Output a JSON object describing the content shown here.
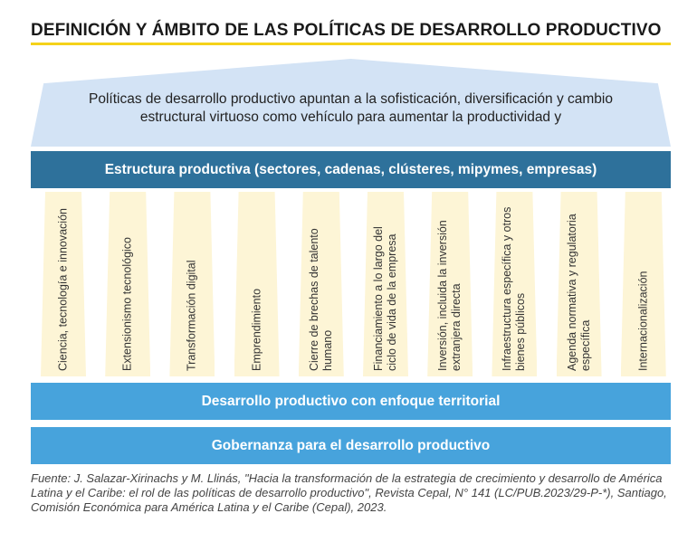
{
  "title": "DEFINICIÓN Y ÁMBITO DE LAS POLÍTICAS DE DESARROLLO PRODUCTIVO",
  "roof_text": "Políticas de desarrollo productivo apuntan a la sofisticación, diversificación y cambio estructural virtuoso como vehículo para aumentar la productividad y",
  "structure_band": "Estructura productiva (sectores, cadenas, clústeres, mipymes, empresas)",
  "pillars": [
    "Ciencia, tecnología e innovación",
    "Extensionismo tecnológico",
    "Transformación digital",
    "Emprendimiento",
    "Cierre de brechas de talento humano",
    "Financiamiento a lo largo del ciclo de vida de la empresa",
    "Inversión, incluida la inversión extranjera directa",
    "Infraestructura específica y otros bienes públicos",
    "Agenda normativa y regulatoria específica",
    "Internacionalización"
  ],
  "territorial_band": "Desarrollo productivo con enfoque territorial",
  "governance_band": "Gobernanza para el desarrollo productivo",
  "source": "Fuente: J. Salazar-Xirinachs y M. Llinás, \"Hacia la transformación de la estrategia de crecimiento y desarrollo de América Latina y el Caribe: el rol de las políticas de desarrollo productivo\", Revista Cepal, N° 141 (LC/PUB.2023/29-P-*), Santiago, Comisión Económica para América Latina y el Caribe (Cepal), 2023.",
  "colors": {
    "accent": "#f5d21a",
    "dark_band": "#2e719b",
    "light_band": "#47a3dc",
    "roof": "#d3e3f5",
    "pillar": "#fdf5d6"
  }
}
